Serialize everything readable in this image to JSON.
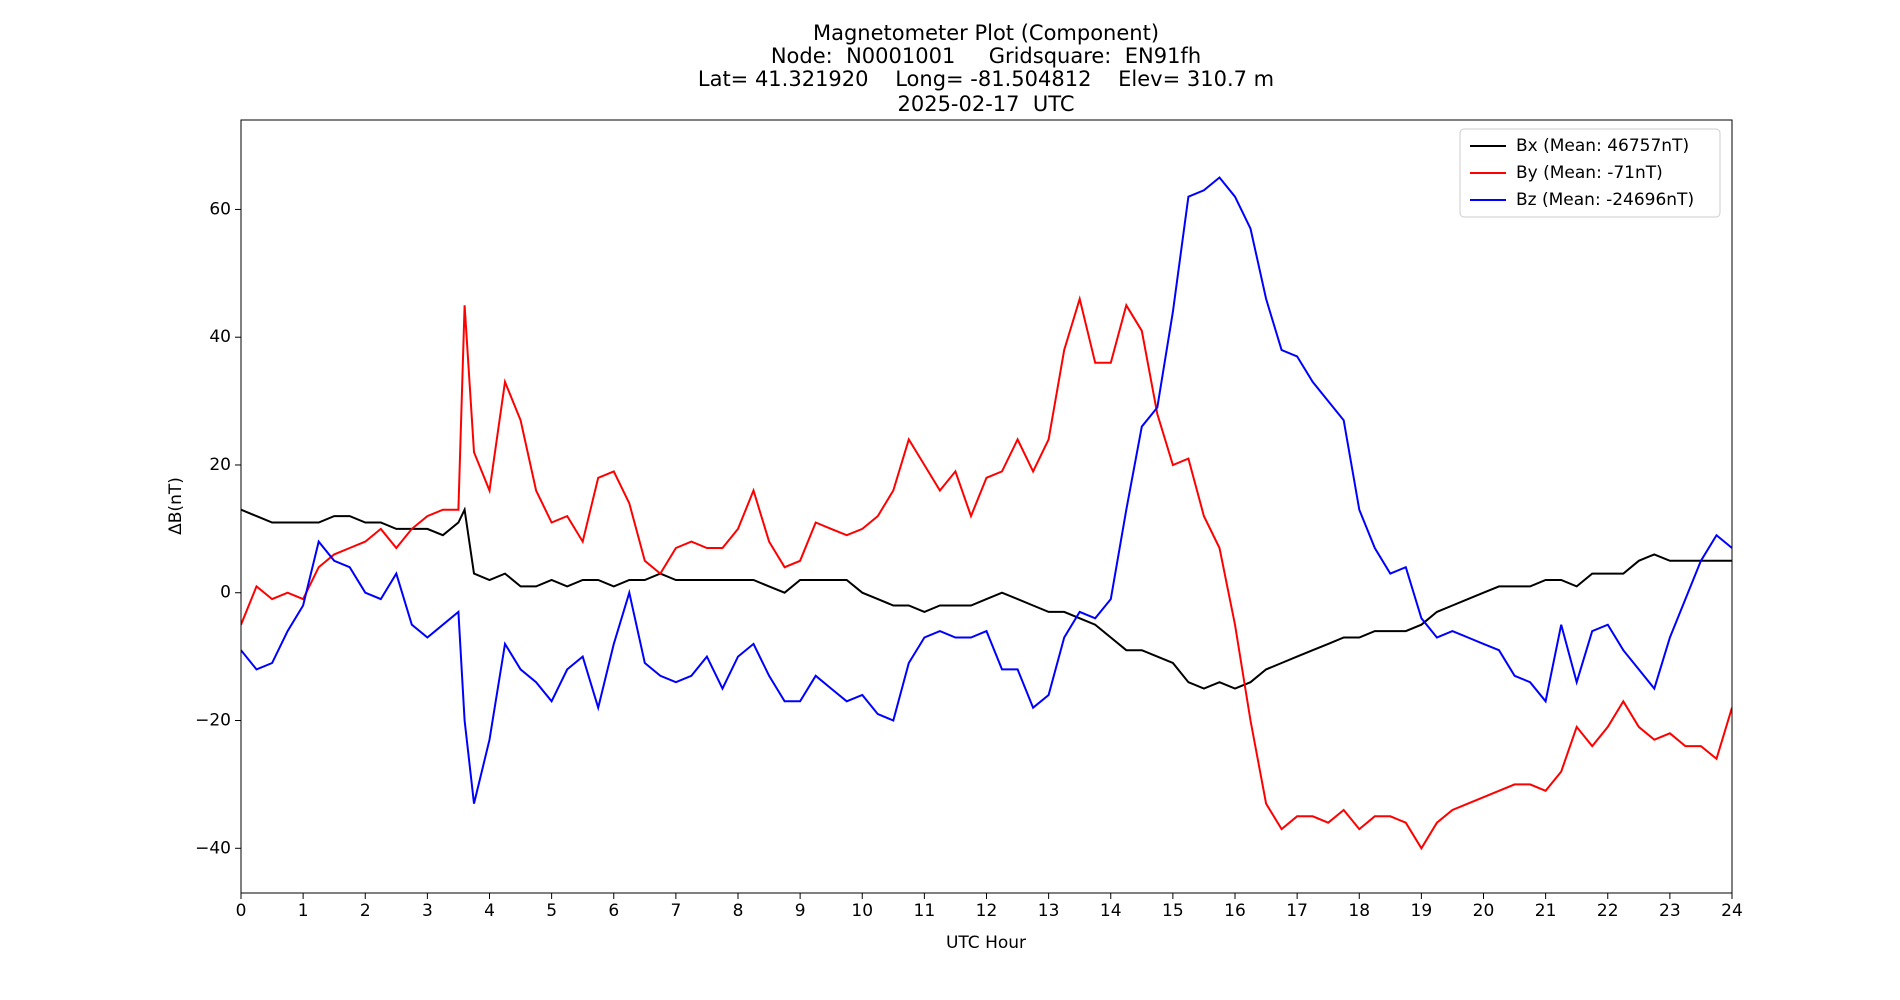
{
  "chart_data": {
    "type": "line",
    "title": [
      "Magnetometer Plot (Component)",
      "Node:  N0001001     Gridsquare:  EN91fh",
      "Lat= 41.321920    Long= -81.504812    Elev= 310.7 m",
      "2025-02-17  UTC"
    ],
    "x_label": "UTC Hour",
    "y_label": "ΔB(nT)",
    "xlim": [
      0,
      24
    ],
    "ylim": [
      -47,
      74
    ],
    "xticks": [
      0,
      1,
      2,
      3,
      4,
      5,
      6,
      7,
      8,
      9,
      10,
      11,
      12,
      13,
      14,
      15,
      16,
      17,
      18,
      19,
      20,
      21,
      22,
      23,
      24
    ],
    "yticks": [
      {
        "value": -40,
        "label": "−40"
      },
      {
        "value": -20,
        "label": "−20"
      },
      0,
      20,
      40,
      60
    ],
    "legend": "upper right",
    "x": [
      0,
      0.25,
      0.5,
      0.75,
      1,
      1.25,
      1.5,
      1.75,
      2,
      2.25,
      2.5,
      2.75,
      3,
      3.25,
      3.5,
      3.6,
      3.75,
      4,
      4.25,
      4.5,
      4.75,
      5,
      5.25,
      5.5,
      5.75,
      6,
      6.25,
      6.5,
      6.75,
      7,
      7.25,
      7.5,
      7.75,
      8,
      8.25,
      8.5,
      8.75,
      9,
      9.25,
      9.5,
      9.75,
      10,
      10.25,
      10.5,
      10.75,
      11,
      11.25,
      11.5,
      11.75,
      12,
      12.25,
      12.5,
      12.75,
      13,
      13.25,
      13.5,
      13.75,
      14,
      14.25,
      14.5,
      14.75,
      15,
      15.25,
      15.5,
      15.75,
      16,
      16.25,
      16.5,
      16.75,
      17,
      17.25,
      17.5,
      17.75,
      18,
      18.25,
      18.5,
      18.75,
      19,
      19.25,
      19.5,
      19.75,
      20,
      20.25,
      20.5,
      20.75,
      21,
      21.25,
      21.5,
      21.75,
      22,
      22.25,
      22.5,
      22.75,
      23,
      23.25,
      23.5,
      23.75,
      24
    ],
    "series": [
      {
        "name": "Bx (Mean: 46757nT)",
        "color": "#000000",
        "values": [
          13,
          12,
          11,
          11,
          11,
          11,
          12,
          12,
          11,
          11,
          10,
          10,
          10,
          9,
          11,
          13,
          3,
          2,
          3,
          1,
          1,
          2,
          1,
          2,
          2,
          1,
          2,
          2,
          3,
          2,
          2,
          2,
          2,
          2,
          2,
          1,
          0,
          2,
          2,
          2,
          2,
          0,
          -1,
          -2,
          -2,
          -3,
          -2,
          -2,
          -2,
          -1,
          0,
          -1,
          -2,
          -3,
          -3,
          -4,
          -5,
          -7,
          -9,
          -9,
          -10,
          -11,
          -14,
          -15,
          -14,
          -15,
          -14,
          -12,
          -11,
          -10,
          -9,
          -8,
          -7,
          -7,
          -6,
          -6,
          -6,
          -5,
          -3,
          -2,
          -1,
          0,
          1,
          1,
          1,
          2,
          2,
          1,
          3,
          3,
          3,
          5,
          6,
          5,
          5,
          5,
          5,
          5
        ]
      },
      {
        "name": "By (Mean: -71nT)",
        "color": "#ff0000",
        "values": [
          -5,
          1,
          -1,
          0,
          -1,
          4,
          6,
          7,
          8,
          10,
          7,
          10,
          12,
          13,
          13,
          45,
          22,
          16,
          33,
          27,
          16,
          11,
          12,
          8,
          18,
          19,
          14,
          5,
          3,
          7,
          8,
          7,
          7,
          10,
          16,
          8,
          4,
          5,
          11,
          10,
          9,
          10,
          12,
          16,
          24,
          20,
          16,
          19,
          12,
          18,
          19,
          24,
          19,
          24,
          38,
          46,
          36,
          36,
          45,
          41,
          28,
          20,
          21,
          12,
          7,
          -5,
          -20,
          -33,
          -37,
          -35,
          -35,
          -36,
          -34,
          -37,
          -35,
          -35,
          -36,
          -40,
          -36,
          -34,
          -33,
          -32,
          -31,
          -30,
          -30,
          -31,
          -28,
          -21,
          -24,
          -21,
          -17,
          -21,
          -23,
          -22,
          -24,
          -24,
          -26,
          -18
        ]
      },
      {
        "name": "Bz (Mean: -24696nT)",
        "color": "#0000ff",
        "values": [
          -9,
          -12,
          -11,
          -6,
          -2,
          8,
          5,
          4,
          0,
          -1,
          3,
          -5,
          -7,
          -5,
          -3,
          -20,
          -33,
          -23,
          -8,
          -12,
          -14,
          -17,
          -12,
          -10,
          -18,
          -8,
          0,
          -11,
          -13,
          -14,
          -13,
          -10,
          -15,
          -10,
          -8,
          -13,
          -17,
          -17,
          -13,
          -15,
          -17,
          -16,
          -19,
          -20,
          -11,
          -7,
          -6,
          -7,
          -7,
          -6,
          -12,
          -12,
          -18,
          -16,
          -7,
          -3,
          -4,
          -1,
          13,
          26,
          29,
          44,
          62,
          63,
          65,
          62,
          57,
          46,
          38,
          37,
          33,
          30,
          27,
          13,
          7,
          3,
          4,
          -4,
          -7,
          -6,
          -7,
          -8,
          -9,
          -13,
          -14,
          -17,
          -5,
          -14,
          -6,
          -5,
          -9,
          -12,
          -15,
          -7,
          -1,
          5,
          9,
          7
        ]
      }
    ]
  }
}
